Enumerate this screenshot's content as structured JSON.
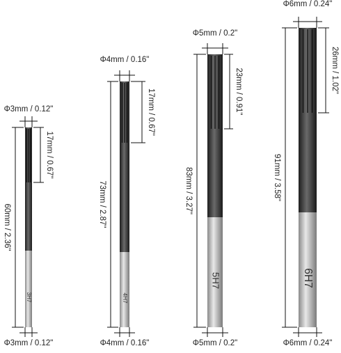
{
  "tools": [
    {
      "top_diameter": "Φ3mm / 0.12\"",
      "flute_length": "17mm / 0.67\"",
      "overall_length": "60mm / 2.36\"",
      "bottom_diameter": "Φ3mm / 0.12\"",
      "marking": "3H7"
    },
    {
      "top_diameter": "Φ4mm / 0.16\"",
      "flute_length": "17mm / 0.67\"",
      "overall_length": "73mm / 2.87\"",
      "bottom_diameter": "Φ4mm / 0.16\"",
      "marking": "4H7"
    },
    {
      "top_diameter": "Φ5mm / 0.2\"",
      "flute_length": "23mm / 0.91\"",
      "overall_length": "83mm / 3.27\"",
      "bottom_diameter": "Φ5mm / 0.2\"",
      "marking": "5H7"
    },
    {
      "top_diameter": "Φ6mm / 0.24\"",
      "flute_length": "26mm / 1.02\"",
      "overall_length": "91mm / 3.58\"",
      "bottom_diameter": "Φ6mm / 0.24\"",
      "marking": "6H7"
    }
  ]
}
